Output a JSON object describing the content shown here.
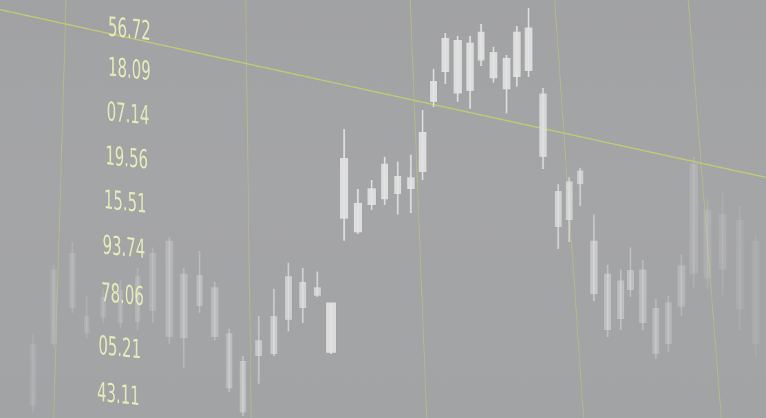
{
  "colors": {
    "background": "#a3a4a6",
    "grid_line": "#c6d06a",
    "label_text": "#e5ebb7",
    "candle": "#e2e2e2"
  },
  "chart_data": {
    "type": "candlestick",
    "title": "",
    "xlabel": "",
    "ylabel": "",
    "grid": true,
    "legend": "none",
    "scale_labels": [
      "56.72",
      "18.09",
      "07.14",
      "19.56",
      "15.51",
      "93.74",
      "78.06",
      "05.21",
      "43.11"
    ]
  }
}
